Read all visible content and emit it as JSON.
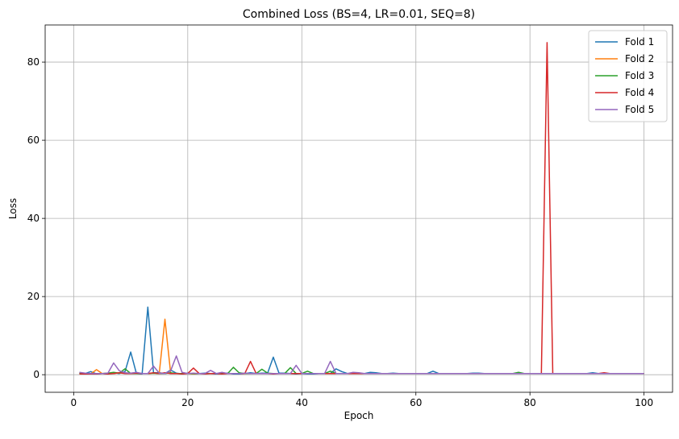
{
  "chart_data": {
    "type": "line",
    "title": "Combined Loss (BS=4, LR=0.01, SEQ=8)",
    "xlabel": "Epoch",
    "ylabel": "Loss",
    "xlim": [
      -5,
      105
    ],
    "ylim": [
      -4.5,
      89.5
    ],
    "xticks": [
      0,
      20,
      40,
      60,
      80,
      100
    ],
    "yticks": [
      0,
      20,
      40,
      60,
      80
    ],
    "grid": true,
    "legend_position": "top-right",
    "series": [
      {
        "name": "Fold 1",
        "color": "#1f77b4",
        "x": [
          1,
          2,
          3,
          4,
          5,
          6,
          7,
          8,
          9,
          10,
          11,
          12,
          13,
          14,
          15,
          16,
          17,
          18,
          19,
          20,
          21,
          22,
          23,
          24,
          25,
          26,
          27,
          28,
          29,
          30,
          31,
          32,
          33,
          34,
          35,
          36,
          37,
          38,
          39,
          40,
          41,
          42,
          43,
          44,
          45,
          46,
          47,
          48,
          49,
          50,
          51,
          52,
          53,
          54,
          55,
          56,
          57,
          58,
          59,
          60,
          61,
          62,
          63,
          64,
          65,
          66,
          67,
          68,
          69,
          70,
          71,
          72,
          73,
          74,
          75,
          76,
          77,
          78,
          79,
          80,
          81,
          82,
          83,
          84,
          85,
          86,
          87,
          88,
          89,
          90,
          91,
          92,
          93,
          94,
          95,
          96,
          97,
          98,
          99,
          100
        ],
        "values": [
          0.3,
          0.3,
          0.8,
          0.2,
          0.3,
          0.2,
          0.5,
          0.3,
          0.8,
          5.8,
          0.3,
          0.2,
          17.3,
          0.5,
          0.5,
          0.3,
          1.2,
          0.4,
          0.2,
          0.4,
          0.2,
          0.3,
          0.4,
          0.3,
          0.2,
          0.3,
          0.4,
          0.2,
          0.2,
          0.3,
          0.5,
          0.3,
          0.4,
          0.4,
          4.5,
          0.4,
          0.4,
          0.3,
          0.2,
          0.3,
          0.2,
          0.2,
          0.3,
          0.3,
          0.3,
          1.5,
          0.8,
          0.3,
          0.3,
          0.3,
          0.3,
          0.6,
          0.5,
          0.3,
          0.3,
          0.4,
          0.3,
          0.3,
          0.3,
          0.3,
          0.3,
          0.3,
          0.9,
          0.3,
          0.3,
          0.3,
          0.3,
          0.3,
          0.3,
          0.4,
          0.4,
          0.3,
          0.3,
          0.3,
          0.3,
          0.3,
          0.3,
          0.3,
          0.3,
          0.3,
          0.3,
          0.3,
          0.3,
          0.3,
          0.3,
          0.3,
          0.3,
          0.3,
          0.3,
          0.3,
          0.5,
          0.3,
          0.3,
          0.3,
          0.3,
          0.3,
          0.3,
          0.3,
          0.3,
          0.3
        ]
      },
      {
        "name": "Fold 2",
        "color": "#ff7f0e",
        "x": [
          1,
          2,
          3,
          4,
          5,
          6,
          7,
          8,
          9,
          10,
          11,
          12,
          13,
          14,
          15,
          16,
          17,
          18,
          19,
          20,
          21,
          22,
          23,
          24,
          25,
          26,
          27,
          28,
          29,
          30,
          31,
          32,
          33,
          34,
          35,
          36,
          37,
          38,
          39,
          40,
          41,
          42,
          43,
          44,
          45,
          46,
          47,
          48,
          49,
          50,
          51,
          52,
          53,
          54,
          55,
          56,
          57,
          58,
          59,
          60,
          61,
          62,
          63,
          64,
          65,
          66,
          67,
          68,
          69,
          70,
          71,
          72,
          73,
          74,
          75,
          76,
          77,
          78,
          79,
          80,
          81,
          82,
          83,
          84,
          85,
          86,
          87,
          88,
          89,
          90,
          91,
          92,
          93,
          94,
          95,
          96,
          97,
          98,
          99,
          100
        ],
        "values": [
          0.5,
          0.3,
          0.2,
          1.3,
          0.3,
          0.4,
          0.3,
          0.5,
          0.4,
          0.3,
          0.3,
          0.3,
          0.3,
          0.4,
          0.3,
          14.2,
          0.4,
          0.3,
          0.3,
          0.3,
          0.2,
          0.3,
          0.3,
          0.3,
          0.3,
          0.3,
          0.3,
          0.3,
          0.3,
          0.3,
          0.3,
          0.3,
          0.3,
          0.3,
          0.3,
          0.3,
          0.3,
          0.3,
          0.3,
          0.3,
          0.3,
          0.3,
          0.3,
          0.3,
          0.3,
          0.3,
          0.3,
          0.3,
          0.3,
          0.3,
          0.3,
          0.3,
          0.3,
          0.3,
          0.3,
          0.3,
          0.3,
          0.3,
          0.3,
          0.3,
          0.3,
          0.3,
          0.3,
          0.3,
          0.3,
          0.3,
          0.3,
          0.3,
          0.3,
          0.3,
          0.3,
          0.3,
          0.3,
          0.3,
          0.3,
          0.3,
          0.3,
          0.3,
          0.3,
          0.3,
          0.3,
          0.3,
          0.3,
          0.3,
          0.3,
          0.3,
          0.3,
          0.3,
          0.3,
          0.3,
          0.3,
          0.3,
          0.3,
          0.3,
          0.3,
          0.3,
          0.3,
          0.3,
          0.3,
          0.3
        ]
      },
      {
        "name": "Fold 3",
        "color": "#2ca02c",
        "x": [
          1,
          2,
          3,
          4,
          5,
          6,
          7,
          8,
          9,
          10,
          11,
          12,
          13,
          14,
          15,
          16,
          17,
          18,
          19,
          20,
          21,
          22,
          23,
          24,
          25,
          26,
          27,
          28,
          29,
          30,
          31,
          32,
          33,
          34,
          35,
          36,
          37,
          38,
          39,
          40,
          41,
          42,
          43,
          44,
          45,
          46,
          47,
          48,
          49,
          50,
          51,
          52,
          53,
          54,
          55,
          56,
          57,
          58,
          59,
          60,
          61,
          62,
          63,
          64,
          65,
          66,
          67,
          68,
          69,
          70,
          71,
          72,
          73,
          74,
          75,
          76,
          77,
          78,
          79,
          80,
          81,
          82,
          83,
          84,
          85,
          86,
          87,
          88,
          89,
          90,
          91,
          92,
          93,
          94,
          95,
          96,
          97,
          98,
          99,
          100
        ],
        "values": [
          0.4,
          0.3,
          0.3,
          0.3,
          0.3,
          0.4,
          0.6,
          0.4,
          1.5,
          0.3,
          0.3,
          0.3,
          0.3,
          0.4,
          0.3,
          0.3,
          0.5,
          0.3,
          0.3,
          0.3,
          0.3,
          0.3,
          0.3,
          0.3,
          0.3,
          0.3,
          0.3,
          1.9,
          0.5,
          0.3,
          0.3,
          0.3,
          1.4,
          0.4,
          0.3,
          0.3,
          0.3,
          1.8,
          0.3,
          0.3,
          0.9,
          0.3,
          0.3,
          0.3,
          0.9,
          0.3,
          0.3,
          0.3,
          0.3,
          0.3,
          0.3,
          0.3,
          0.3,
          0.3,
          0.3,
          0.3,
          0.3,
          0.3,
          0.3,
          0.3,
          0.3,
          0.3,
          0.3,
          0.3,
          0.3,
          0.3,
          0.3,
          0.3,
          0.3,
          0.3,
          0.3,
          0.3,
          0.3,
          0.3,
          0.3,
          0.3,
          0.3,
          0.6,
          0.3,
          0.3,
          0.3,
          0.3,
          0.3,
          0.3,
          0.3,
          0.3,
          0.3,
          0.3,
          0.3,
          0.3,
          0.3,
          0.3,
          0.3,
          0.3,
          0.3,
          0.3,
          0.3,
          0.3,
          0.3,
          0.3
        ]
      },
      {
        "name": "Fold 4",
        "color": "#d62728",
        "x": [
          1,
          2,
          3,
          4,
          5,
          6,
          7,
          8,
          9,
          10,
          11,
          12,
          13,
          14,
          15,
          16,
          17,
          18,
          19,
          20,
          21,
          22,
          23,
          24,
          25,
          26,
          27,
          28,
          29,
          30,
          31,
          32,
          33,
          34,
          35,
          36,
          37,
          38,
          39,
          40,
          41,
          42,
          43,
          44,
          45,
          46,
          47,
          48,
          49,
          50,
          51,
          52,
          53,
          54,
          55,
          56,
          57,
          58,
          59,
          60,
          61,
          62,
          63,
          64,
          65,
          66,
          67,
          68,
          69,
          70,
          71,
          72,
          73,
          74,
          75,
          76,
          77,
          78,
          79,
          80,
          81,
          82,
          83,
          84,
          85,
          86,
          87,
          88,
          89,
          90,
          91,
          92,
          93,
          94,
          95,
          96,
          97,
          98,
          99,
          100
        ],
        "values": [
          0.2,
          0.2,
          0.2,
          0.2,
          0.3,
          0.2,
          0.3,
          0.5,
          0.3,
          0.3,
          0.4,
          0.3,
          0.3,
          0.5,
          0.3,
          0.5,
          0.3,
          0.3,
          0.2,
          0.3,
          1.7,
          0.3,
          0.2,
          0.3,
          0.3,
          0.2,
          0.3,
          0.3,
          0.3,
          0.3,
          3.4,
          0.3,
          0.3,
          0.3,
          0.2,
          0.3,
          0.3,
          0.3,
          0.3,
          0.3,
          0.3,
          0.3,
          0.3,
          0.3,
          0.3,
          0.3,
          0.3,
          0.3,
          0.3,
          0.3,
          0.3,
          0.3,
          0.3,
          0.3,
          0.3,
          0.3,
          0.3,
          0.3,
          0.3,
          0.3,
          0.3,
          0.3,
          0.3,
          0.3,
          0.3,
          0.3,
          0.3,
          0.3,
          0.3,
          0.3,
          0.3,
          0.3,
          0.3,
          0.3,
          0.3,
          0.3,
          0.3,
          0.3,
          0.3,
          0.3,
          0.3,
          0.3,
          85.0,
          0.3,
          0.3,
          0.3,
          0.3,
          0.3,
          0.3,
          0.3,
          0.3,
          0.3,
          0.5,
          0.3,
          0.3,
          0.3,
          0.3,
          0.3,
          0.3,
          0.3
        ]
      },
      {
        "name": "Fold 5",
        "color": "#9467bd",
        "x": [
          1,
          2,
          3,
          4,
          5,
          6,
          7,
          8,
          9,
          10,
          11,
          12,
          13,
          14,
          15,
          16,
          17,
          18,
          19,
          20,
          21,
          22,
          23,
          24,
          25,
          26,
          27,
          28,
          29,
          30,
          31,
          32,
          33,
          34,
          35,
          36,
          37,
          38,
          39,
          40,
          41,
          42,
          43,
          44,
          45,
          46,
          47,
          48,
          49,
          50,
          51,
          52,
          53,
          54,
          55,
          56,
          57,
          58,
          59,
          60,
          61,
          62,
          63,
          64,
          65,
          66,
          67,
          68,
          69,
          70,
          71,
          72,
          73,
          74,
          75,
          76,
          77,
          78,
          79,
          80,
          81,
          82,
          83,
          84,
          85,
          86,
          87,
          88,
          89,
          90,
          91,
          92,
          93,
          94,
          95,
          96,
          97,
          98,
          99,
          100
        ],
        "values": [
          0.6,
          0.4,
          0.3,
          0.3,
          0.3,
          0.4,
          3.0,
          1.0,
          0.5,
          0.4,
          0.6,
          0.3,
          0.3,
          2.2,
          0.4,
          0.3,
          1.0,
          4.8,
          0.6,
          0.3,
          0.4,
          0.3,
          0.3,
          1.1,
          0.3,
          0.6,
          0.3,
          0.3,
          0.3,
          0.4,
          0.3,
          0.3,
          0.3,
          0.3,
          0.3,
          0.3,
          0.3,
          0.3,
          2.4,
          0.3,
          0.3,
          0.3,
          0.3,
          0.3,
          3.4,
          0.3,
          0.3,
          0.3,
          0.6,
          0.5,
          0.3,
          0.3,
          0.3,
          0.3,
          0.3,
          0.3,
          0.3,
          0.3,
          0.3,
          0.3,
          0.3,
          0.3,
          0.3,
          0.3,
          0.3,
          0.3,
          0.3,
          0.3,
          0.3,
          0.3,
          0.3,
          0.3,
          0.3,
          0.3,
          0.3,
          0.3,
          0.3,
          0.3,
          0.3,
          0.3,
          0.3,
          0.3,
          0.3,
          0.3,
          0.3,
          0.3,
          0.3,
          0.3,
          0.3,
          0.3,
          0.3,
          0.3,
          0.3,
          0.3,
          0.3,
          0.3,
          0.3,
          0.3,
          0.3,
          0.3
        ]
      }
    ]
  }
}
